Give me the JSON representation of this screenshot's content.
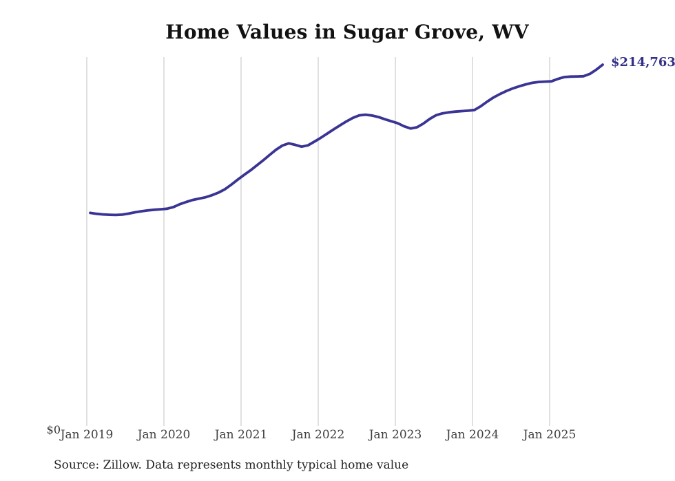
{
  "title": "Home Values in Sugar Grove, WV",
  "end_label": "$214,763",
  "y_axis": {
    "zero_label": "$0"
  },
  "source_note": "Source: Zillow. Data represents monthly typical home value",
  "colors": {
    "line": "#3a3494",
    "grid": "#d3d3d3",
    "title": "#121212",
    "tick_text": "#3f3f3f",
    "end_label": "#333087",
    "background": "#ffffff"
  },
  "chart_data": {
    "type": "line",
    "title": "Home Values in Sugar Grove, WV",
    "xlabel": "",
    "ylabel": "",
    "ylim": [
      0,
      214763
    ],
    "grid": "vertical-yearly-gridlines",
    "legend": "none",
    "x_tick_labels": [
      "Jan 2019",
      "Jan 2020",
      "Jan 2021",
      "Jan 2022",
      "Jan 2023",
      "Jan 2024",
      "Jan 2025"
    ],
    "frequency": "monthly",
    "start_month": "Jan 2019",
    "end_month": "Sep 2025",
    "last_point_label": "$214,763",
    "last_point_value": 214763,
    "series": [
      {
        "name": "Typical home value (USD)",
        "values": [
          126800,
          126300,
          125900,
          125700,
          125600,
          125800,
          126400,
          127200,
          127800,
          128300,
          128700,
          129000,
          129300,
          130300,
          132000,
          133300,
          134500,
          135300,
          136100,
          137300,
          138800,
          140800,
          143500,
          146500,
          149300,
          152000,
          155000,
          158000,
          161200,
          164300,
          166800,
          168100,
          167200,
          166100,
          166900,
          169100,
          171400,
          173900,
          176400,
          178800,
          181100,
          183200,
          184700,
          185100,
          184600,
          183700,
          182400,
          181200,
          180000,
          178200,
          176900,
          177600,
          179800,
          182600,
          184800,
          185900,
          186500,
          186900,
          187200,
          187500,
          187900,
          190200,
          192900,
          195400,
          197400,
          199200,
          200700,
          202000,
          203100,
          204000,
          204500,
          204700,
          204900,
          206300,
          207400,
          207700,
          207800,
          207900,
          209300,
          211800,
          214763
        ]
      }
    ]
  }
}
